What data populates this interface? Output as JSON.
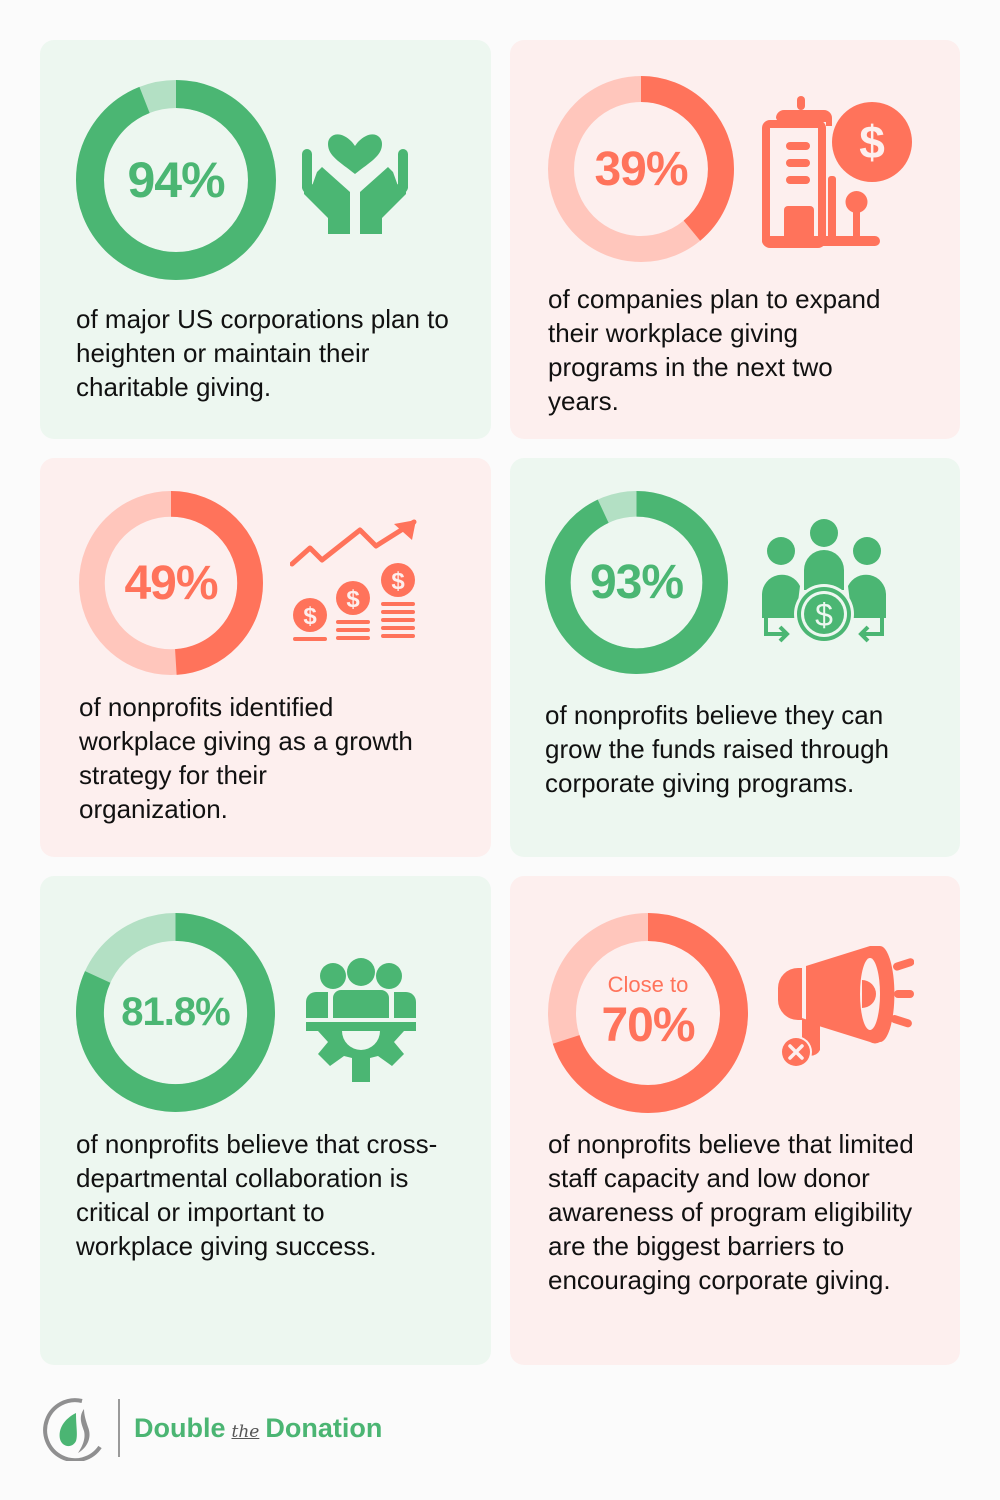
{
  "colors": {
    "green": "#4bb673",
    "green_light": "#b3e0c4",
    "green_bg": "#edf7f0",
    "red": "#ff735b",
    "red_light": "#ffc6bc",
    "red_bg": "#fdefee",
    "text": "#111111"
  },
  "cards": [
    {
      "theme": "green",
      "value_prefix": "",
      "value": "94%",
      "percent": 94,
      "icon": "heart-in-hands-icon",
      "description": "of major US corporations plan to heighten or maintain their charitable giving."
    },
    {
      "theme": "red",
      "value_prefix": "",
      "value": "39%",
      "percent": 39,
      "icon": "building-dollar-icon",
      "description": "of companies plan to expand their workplace giving programs in the next two years."
    },
    {
      "theme": "red",
      "value_prefix": "",
      "value": "49%",
      "percent": 49,
      "icon": "growth-coins-icon",
      "description": "of nonprofits identified workplace giving as a growth strategy for their organization."
    },
    {
      "theme": "green",
      "value_prefix": "",
      "value": "93%",
      "percent": 93,
      "icon": "people-funds-icon",
      "description": "of nonprofits believe they can grow the funds raised through corporate giving programs."
    },
    {
      "theme": "green",
      "value_prefix": "",
      "value": "81.8%",
      "percent": 81.8,
      "icon": "team-gear-icon",
      "description": "of nonprofits believe that cross-departmental collaboration is critical or important to workplace giving success."
    },
    {
      "theme": "red",
      "value_prefix": "Close to",
      "value": "70%",
      "percent": 70,
      "icon": "megaphone-x-icon",
      "description": "of nonprofits believe that limited staff capacity and low donor awareness of program eligibility are the biggest barriers to encouraging corporate giving."
    }
  ],
  "logo": {
    "word1": "Double",
    "word2": "the",
    "word3": "Donation"
  }
}
